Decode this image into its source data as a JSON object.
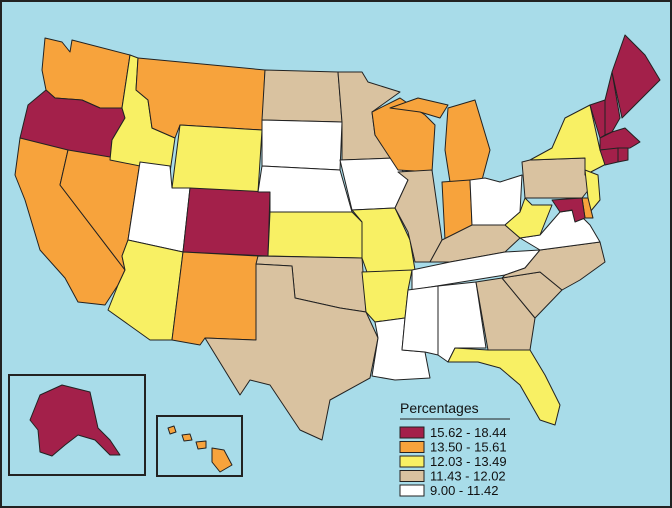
{
  "colors": {
    "ocean": "#a8dce9",
    "border": "#222222",
    "c1": "#a3204a",
    "c2": "#f7a33c",
    "c3": "#f8f064",
    "c4": "#d9c2a0",
    "c5": "#ffffff"
  },
  "legend": {
    "title": "Percentages",
    "items": [
      {
        "label": "15.62 - 18.44",
        "cls": "c1"
      },
      {
        "label": "13.50 - 15.61",
        "cls": "c2"
      },
      {
        "label": "12.03 - 13.49",
        "cls": "c3"
      },
      {
        "label": "11.43 - 12.02",
        "cls": "c4"
      },
      {
        "label": "9.00 - 11.42",
        "cls": "c5"
      }
    ]
  },
  "states": {
    "WA": "c2",
    "OR": "c1",
    "CA": "c2",
    "NV": "c2",
    "ID": "c3",
    "MT": "c2",
    "WY": "c3",
    "UT": "c5",
    "AZ": "c3",
    "CO": "c1",
    "NM": "c2",
    "ND": "c4",
    "SD": "c5",
    "NE": "c5",
    "KS": "c3",
    "OK": "c4",
    "TX": "c4",
    "MN": "c4",
    "IA": "c5",
    "MO": "c3",
    "AR": "c3",
    "LA": "c5",
    "WI": "c2",
    "IL": "c4",
    "MI": "c2",
    "IN": "c2",
    "OH": "c5",
    "KY": "c4",
    "TN": "c5",
    "MS": "c5",
    "AL": "c5",
    "GA": "c4",
    "FL": "c3",
    "SC": "c4",
    "NC": "c4",
    "VA": "c5",
    "WV": "c3",
    "PA": "c4",
    "NY": "c3",
    "NJ": "c3",
    "DE": "c2",
    "MD": "c1",
    "ME": "c1",
    "NH": "c1",
    "VT": "c1",
    "MA": "c1",
    "CT": "c1",
    "RI": "c1",
    "AK": "c1",
    "HI": "c2"
  }
}
